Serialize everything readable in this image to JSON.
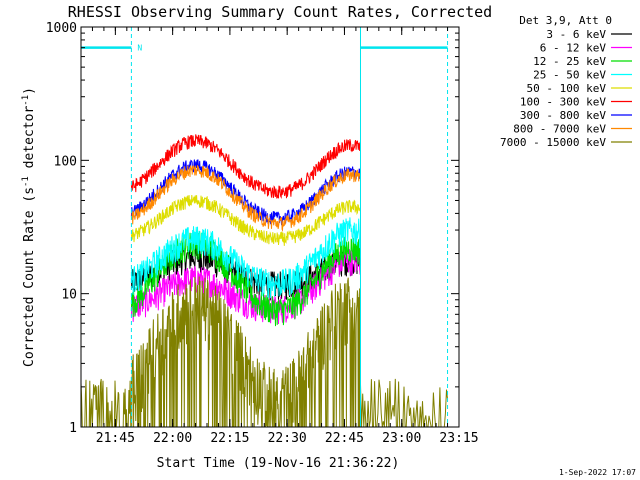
{
  "chart_data": {
    "type": "line",
    "title": "RHESSI Observing Summary Count Rates, Corrected",
    "xlabel": "Start Time (19-Nov-16 21:36:22)",
    "ylabel_parts": [
      "Corrected Count Rate (s",
      "-1",
      " detector",
      "-1",
      ")"
    ],
    "y_scale": "log",
    "ylim": [
      1,
      1000
    ],
    "xlim_minutes": [
      21.6,
      23.25
    ],
    "x_ticks": [
      "21:45",
      "22:00",
      "22:15",
      "22:30",
      "22:45",
      "23:00",
      "23:15"
    ],
    "x_tick_minutes": [
      21.75,
      22.0,
      22.25,
      22.5,
      22.75,
      23.0,
      23.25
    ],
    "y_ticks": [
      "1",
      "10",
      "100",
      "1000"
    ],
    "y_tick_values": [
      1,
      10,
      100,
      1000
    ],
    "legend_title": "Det 3,9, Att 0",
    "legend_position": "right",
    "grid": false,
    "series": [
      {
        "name": "3 - 6 keV",
        "color": "#000000",
        "base": 11.5,
        "peak1": 19,
        "peak2": 18
      },
      {
        "name": "6 - 12 keV",
        "color": "#ff00ff",
        "base": 7.5,
        "peak1": 13,
        "peak2": 18
      },
      {
        "name": "12 - 25 keV",
        "color": "#00dd00",
        "base": 7.0,
        "peak1": 24,
        "peak2": 22
      },
      {
        "name": "25 - 50 keV",
        "color": "#00ffff",
        "base": 11.5,
        "peak1": 26,
        "peak2": 30
      },
      {
        "name": "50 - 100 keV",
        "color": "#dddd00",
        "base": 25,
        "peak1": 50,
        "peak2": 45
      },
      {
        "name": "100 - 300 keV",
        "color": "#ff0000",
        "base": 55,
        "peak1": 140,
        "peak2": 130
      },
      {
        "name": "300 - 800 keV",
        "color": "#0000ff",
        "base": 35,
        "peak1": 92,
        "peak2": 82
      },
      {
        "name": "800 - 7000 keV",
        "color": "#ff8800",
        "base": 32,
        "peak1": 85,
        "peak2": 78
      },
      {
        "name": "7000 - 15000 keV",
        "color": "#808000",
        "base": 1.5,
        "peak1": 9,
        "peak2": 9
      }
    ],
    "peak_times": [
      22.1,
      22.78
    ],
    "peak_widths": [
      0.18,
      0.16
    ],
    "night_intervals": [
      [
        21.6,
        21.82
      ],
      [
        22.82,
        23.2
      ]
    ],
    "night_label": "N",
    "stamp": "1-Sep-2022 17:07"
  }
}
